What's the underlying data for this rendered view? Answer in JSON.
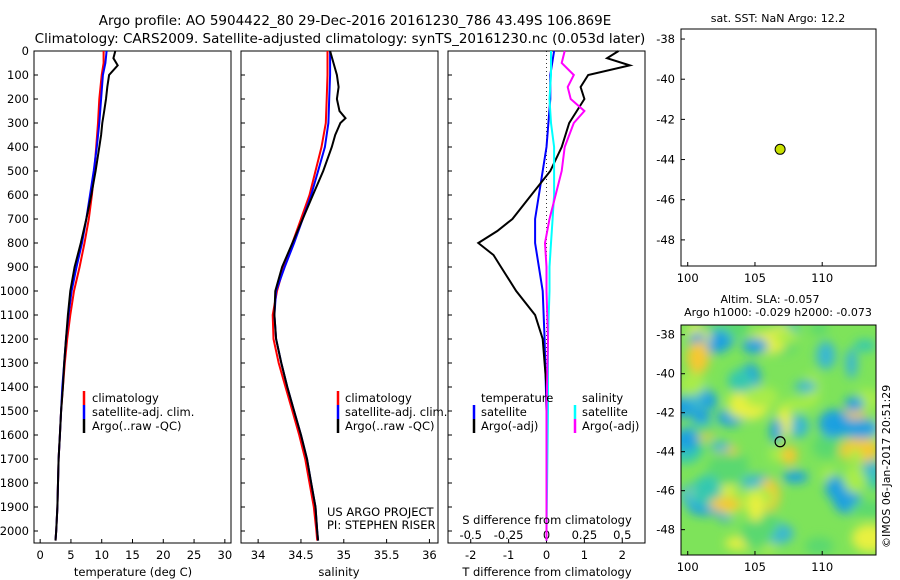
{
  "header": {
    "line1": "Argo profile: AO 5904422_80 29-Dec-2016 20161230_786 43.49S 106.869E",
    "line2": "Climatology: CARS2009. Satellite-adjusted climatology: synTS_20161230.nc (0.053d later)"
  },
  "colors": {
    "climatology": "#ff0000",
    "satellite": "#0000ff",
    "argo": "#000000",
    "sat_salinity": "#00ffff",
    "argo_adj_salinity": "#ff00ff",
    "marker": "#c8e000"
  },
  "watermark": "©IMOS 06-Jan-2017 20:51:29",
  "chart_data": [
    {
      "type": "line",
      "xlabel": "temperature (deg C)",
      "ylim": [
        2050,
        0
      ],
      "xlim": [
        -1,
        31
      ],
      "yticks": [
        0,
        100,
        200,
        300,
        400,
        500,
        600,
        700,
        800,
        900,
        1000,
        1100,
        1200,
        1300,
        1400,
        1500,
        1600,
        1700,
        1800,
        1900,
        2000
      ],
      "xticks": [
        0,
        5,
        10,
        15,
        20,
        25,
        30
      ],
      "legend": [
        "climatology",
        "satellite-adj. clim.",
        "Argo(..raw -QC)"
      ],
      "series": [
        {
          "name": "climatology",
          "y": [
            0,
            50,
            100,
            200,
            300,
            400,
            500,
            600,
            700,
            800,
            900,
            1000,
            1100,
            1200,
            1300,
            1400,
            1500,
            1600,
            1700,
            1800,
            1900,
            2000,
            2040
          ],
          "x": [
            10.3,
            10.3,
            10.0,
            9.6,
            9.4,
            9.1,
            8.8,
            8.4,
            7.9,
            7.2,
            6.4,
            5.5,
            4.9,
            4.4,
            4.0,
            3.7,
            3.4,
            3.2,
            3.0,
            2.9,
            2.8,
            2.6,
            2.5
          ]
        },
        {
          "name": "satellite-adj. clim.",
          "y": [
            0,
            50,
            100,
            200,
            300,
            400,
            500,
            600,
            700,
            800,
            900,
            1000,
            1100,
            1200,
            1300,
            1400,
            1500,
            1600,
            1700,
            1800,
            1900,
            2000,
            2040
          ],
          "x": [
            10.8,
            10.6,
            10.2,
            9.9,
            9.6,
            9.2,
            8.7,
            8.1,
            7.5,
            6.8,
            5.9,
            5.1,
            4.6,
            4.2,
            3.9,
            3.6,
            3.4,
            3.2,
            3.0,
            2.9,
            2.8,
            2.6,
            2.5
          ]
        },
        {
          "name": "Argo(..raw -QC)",
          "y": [
            0,
            30,
            60,
            100,
            150,
            200,
            250,
            300,
            350,
            400,
            500,
            600,
            700,
            800,
            900,
            1000,
            1100,
            1200,
            1300,
            1400,
            1500,
            1600,
            1700,
            1800,
            1900,
            2000,
            2040
          ],
          "x": [
            12.2,
            11.9,
            12.6,
            11.2,
            10.9,
            10.7,
            10.4,
            10.1,
            9.9,
            9.6,
            9.0,
            8.3,
            7.5,
            6.6,
            5.6,
            4.9,
            4.5,
            4.2,
            3.9,
            3.7,
            3.4,
            3.2,
            3.0,
            2.9,
            2.8,
            2.6,
            2.5
          ]
        }
      ]
    },
    {
      "type": "line",
      "xlabel": "salinity",
      "ylim": [
        2050,
        0
      ],
      "xlim": [
        33.8,
        36.1
      ],
      "xticks": [
        34,
        34.5,
        35,
        35.5,
        36
      ],
      "xticklabels": [
        "34",
        "34.5",
        "35",
        "35.5",
        "36"
      ],
      "legend": [
        "climatology",
        "satellite-adj. clim.",
        "Argo(..raw -QC)"
      ],
      "annotation": [
        "US ARGO PROJECT",
        "PI: STEPHEN RISER"
      ],
      "series": [
        {
          "name": "climatology",
          "y": [
            0,
            100,
            200,
            300,
            400,
            500,
            600,
            700,
            800,
            900,
            1000,
            1100,
            1200,
            1300,
            1400,
            1500,
            1600,
            1700,
            1800,
            1900,
            2000,
            2040
          ],
          "x": [
            34.81,
            34.81,
            34.8,
            34.79,
            34.74,
            34.67,
            34.6,
            34.5,
            34.4,
            34.3,
            34.22,
            34.17,
            34.18,
            34.24,
            34.32,
            34.4,
            34.48,
            34.55,
            34.6,
            34.65,
            34.68,
            34.69
          ]
        },
        {
          "name": "satellite-adj. clim.",
          "y": [
            0,
            100,
            200,
            300,
            400,
            500,
            600,
            700,
            800,
            900,
            1000,
            1100,
            1200,
            1300,
            1400,
            1500,
            1600,
            1700,
            1800,
            1900,
            2000,
            2040
          ],
          "x": [
            34.84,
            34.84,
            34.83,
            34.82,
            34.78,
            34.7,
            34.62,
            34.52,
            34.42,
            34.31,
            34.21,
            34.19,
            34.21,
            34.27,
            34.34,
            34.42,
            34.5,
            34.57,
            34.62,
            34.67,
            34.69,
            34.7
          ]
        },
        {
          "name": "Argo(..raw -QC)",
          "y": [
            0,
            50,
            100,
            150,
            200,
            250,
            280,
            300,
            350,
            400,
            500,
            600,
            700,
            800,
            900,
            1000,
            1100,
            1200,
            1300,
            1400,
            1500,
            1600,
            1700,
            1800,
            1900,
            2000,
            2040
          ],
          "x": [
            34.84,
            34.88,
            34.92,
            34.94,
            34.92,
            34.95,
            35.02,
            34.96,
            34.9,
            34.86,
            34.76,
            34.64,
            34.52,
            34.4,
            34.28,
            34.2,
            34.19,
            34.21,
            34.27,
            34.34,
            34.42,
            34.5,
            34.57,
            34.62,
            34.67,
            34.69,
            34.7
          ]
        }
      ]
    },
    {
      "type": "line",
      "xlabel": "T difference from climatology",
      "xlabel2": "S difference from climatology",
      "ylim": [
        2050,
        0
      ],
      "xlim": [
        -2.6,
        2.6
      ],
      "xticks": [
        -2,
        -1,
        0,
        1,
        2
      ],
      "xticks2": [
        -0.5,
        -0.25,
        0,
        0.25,
        0.5
      ],
      "xtick2labels": [
        "-0.5",
        "-0.25",
        "0",
        "0.25",
        "0.5"
      ],
      "legend_temperature": {
        "title": "temperature",
        "items": [
          "satellite",
          "Argo(-adj)"
        ]
      },
      "legend_salinity": {
        "title": "salinity",
        "items": [
          "satellite",
          "Argo(-adj)"
        ]
      },
      "series": [
        {
          "name": "satellite",
          "y": [
            0,
            100,
            200,
            300,
            400,
            500,
            600,
            700,
            800,
            900,
            1000,
            1200,
            1500,
            2000,
            2040
          ],
          "x": [
            0.2,
            0.1,
            0.1,
            0.05,
            0.0,
            -0.1,
            -0.2,
            -0.3,
            -0.3,
            -0.2,
            -0.1,
            -0.05,
            0.0,
            0.0,
            0.0
          ]
        },
        {
          "name": "Argo(-adj)",
          "y": [
            0,
            30,
            60,
            100,
            150,
            200,
            250,
            300,
            400,
            500,
            600,
            700,
            750,
            800,
            850,
            900,
            1000,
            1100,
            1200,
            1400,
            1600,
            2000,
            2040
          ],
          "x": [
            1.9,
            1.6,
            2.2,
            1.1,
            0.9,
            1.0,
            0.8,
            0.6,
            0.4,
            0.1,
            -0.4,
            -0.9,
            -1.3,
            -1.8,
            -1.4,
            -1.2,
            -0.8,
            -0.3,
            -0.1,
            0.0,
            0.0,
            0.0,
            0.0
          ]
        },
        {
          "name": "satellite",
          "y": [
            0,
            100,
            200,
            300,
            400,
            500,
            600,
            700,
            800,
            900,
            1000,
            1200,
            1500,
            2000,
            2040
          ],
          "x": [
            0.03,
            0.03,
            0.02,
            0.03,
            0.05,
            0.05,
            0.05,
            0.04,
            0.03,
            0.02,
            0.02,
            0.01,
            0.01,
            0.0,
            0.0
          ]
        },
        {
          "name": "Argo(-adj)",
          "y": [
            0,
            50,
            100,
            150,
            200,
            250,
            300,
            400,
            500,
            600,
            700,
            800,
            900,
            1000,
            1200,
            1500,
            2000,
            2040
          ],
          "x": [
            0.12,
            0.1,
            0.18,
            0.14,
            0.16,
            0.25,
            0.18,
            0.12,
            0.1,
            0.06,
            0.02,
            -0.01,
            0.0,
            0.0,
            0.01,
            0.0,
            0.0,
            0.0
          ]
        }
      ]
    },
    {
      "type": "scatter",
      "title": "sat. SST: NaN Argo: 12.2",
      "xlim": [
        99.5,
        114
      ],
      "ylim": [
        -49.3,
        -37.5
      ],
      "xticks": [
        100,
        105,
        110
      ],
      "yticks": [
        -38,
        -40,
        -42,
        -44,
        -46,
        -48
      ],
      "points": [
        {
          "x": 106.87,
          "y": -43.49
        }
      ]
    },
    {
      "type": "heatmap",
      "title": "Altim. SLA: -0.057",
      "subtitle": "Argo h1000: -0.029 h2000: -0.073",
      "xlim": [
        99.5,
        114
      ],
      "ylim": [
        -49.3,
        -37.5
      ],
      "xticks": [
        100,
        105,
        110
      ],
      "yticks": [
        -38,
        -40,
        -42,
        -44,
        -46,
        -48
      ],
      "points": [
        {
          "x": 106.87,
          "y": -43.49
        }
      ]
    }
  ]
}
